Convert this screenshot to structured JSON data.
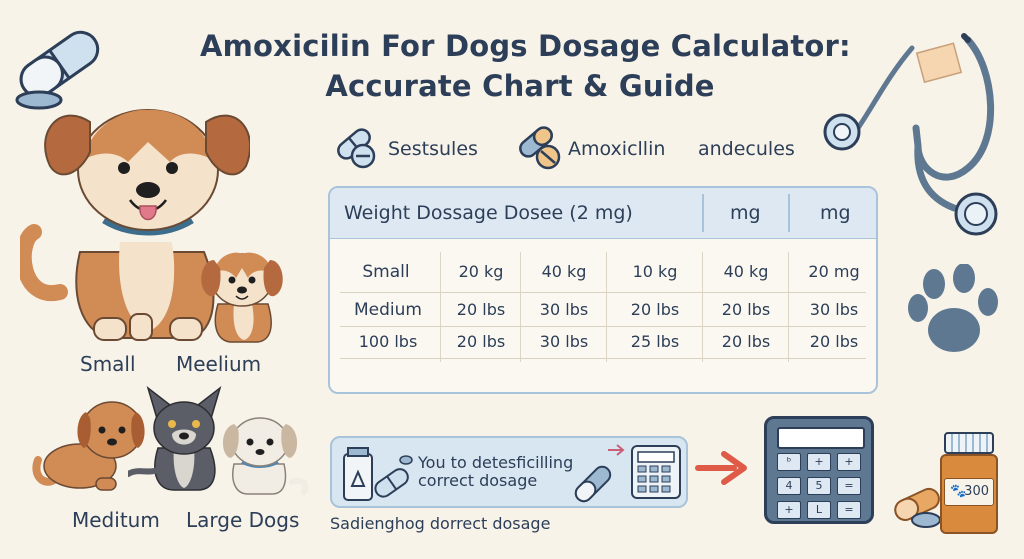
{
  "title": {
    "line1": "Amoxicilin For Dogs Dosage Calculator:",
    "line2": "Accurate Chart & Guide"
  },
  "legend": [
    {
      "label": "Sestsules",
      "icon": "capsule-icon"
    },
    {
      "label": "Amoxicllin",
      "icon": "capsule-icon"
    },
    {
      "label": "andecules",
      "icon": ""
    }
  ],
  "table": {
    "headers": [
      "Weight Dossage Dosee (2 mg)",
      "mg",
      "mg"
    ],
    "rows": [
      [
        "Small",
        "20 kg",
        "40 kg",
        "10 kg",
        "40 kg",
        "20 mg"
      ],
      [
        "Medium",
        "20 lbs",
        "30 lbs",
        "20 lbs",
        "20 lbs",
        "30 lbs"
      ],
      [
        "100 lbs",
        "20 lbs",
        "30 lbs",
        "25 lbs",
        "20 lbs",
        "20 lbs"
      ]
    ]
  },
  "dogs": {
    "small": "Small",
    "meelium": "Meelium",
    "meditum": "Meditum",
    "large": "Large Dogs"
  },
  "callout": {
    "text": "You to detesficilling correct dosage"
  },
  "caption": "Sadienghog dorrect dosage",
  "calculator_keys": [
    "ᵇ",
    "+",
    "+",
    "4",
    "5",
    "=",
    "+",
    "L",
    "="
  ],
  "bottle_label": "300",
  "colors": {
    "background": "#f8f3e9",
    "navy": "#2c3e58",
    "light_blue": "#d8e6f1",
    "slate": "#5f7891",
    "orange": "#d98a3d",
    "dog_tan": "#d18b55",
    "arrow_red": "#e05a48"
  }
}
